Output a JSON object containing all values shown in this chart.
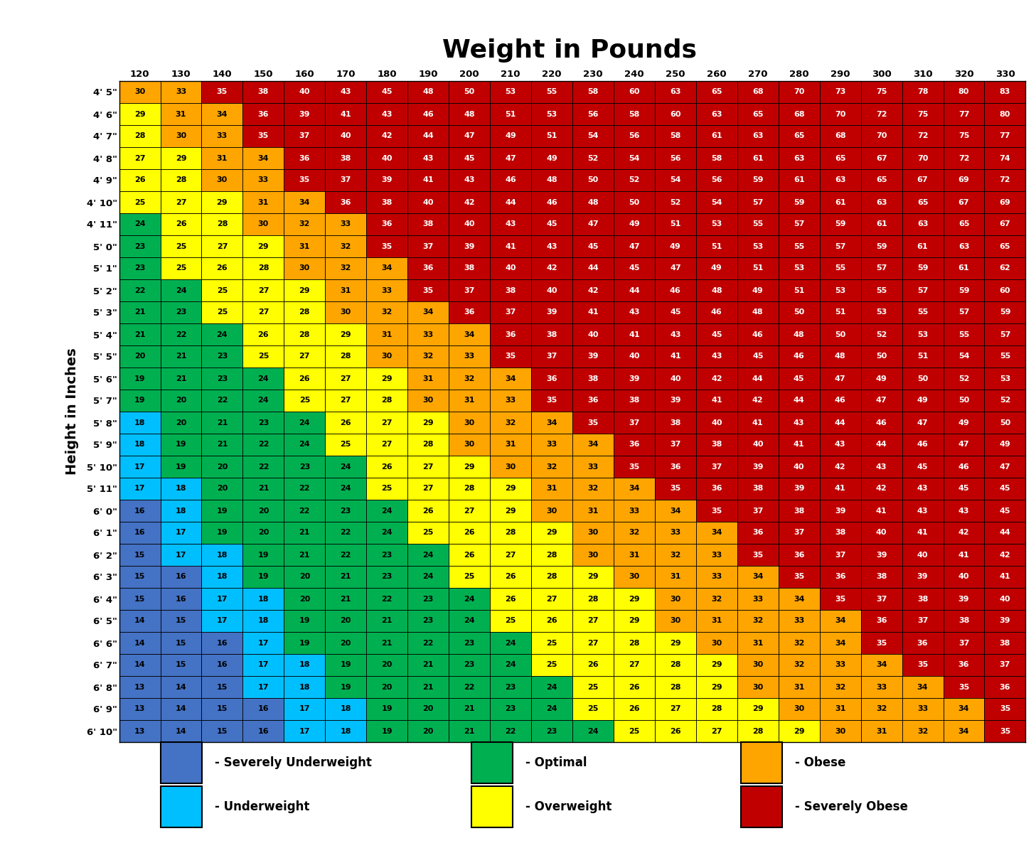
{
  "title": "Weight in Pounds",
  "ylabel": "Height in Inches",
  "weights": [
    120,
    130,
    140,
    150,
    160,
    170,
    180,
    190,
    200,
    210,
    220,
    230,
    240,
    250,
    260,
    270,
    280,
    290,
    300,
    310,
    320,
    330
  ],
  "heights": [
    "4' 5\"",
    "4' 6\"",
    "4' 7\"",
    "4' 8\"",
    "4' 9\"",
    "4' 10\"",
    "4' 11\"",
    "5' 0\"",
    "5' 1\"",
    "5' 2\"",
    "5' 3\"",
    "5' 4\"",
    "5' 5\"",
    "5' 6\"",
    "5' 7\"",
    "5' 8\"",
    "5' 9\"",
    "5' 10\"",
    "5' 11\"",
    "6' 0\"",
    "6' 1\"",
    "6' 2\"",
    "6' 3\"",
    "6' 4\"",
    "6' 5\"",
    "6' 6\"",
    "6' 7\"",
    "6' 8\"",
    "6' 9\"",
    "6' 10\""
  ],
  "bmi_data": [
    [
      30,
      33,
      35,
      38,
      40,
      43,
      45,
      48,
      50,
      53,
      55,
      58,
      60,
      63,
      65,
      68,
      70,
      73,
      75,
      78,
      80,
      83
    ],
    [
      29,
      31,
      34,
      36,
      39,
      41,
      43,
      46,
      48,
      51,
      53,
      56,
      58,
      60,
      63,
      65,
      68,
      70,
      72,
      75,
      77,
      80
    ],
    [
      28,
      30,
      33,
      35,
      37,
      40,
      42,
      44,
      47,
      49,
      51,
      54,
      56,
      58,
      61,
      63,
      65,
      68,
      70,
      72,
      75,
      77
    ],
    [
      27,
      29,
      31,
      34,
      36,
      38,
      40,
      43,
      45,
      47,
      49,
      52,
      54,
      56,
      58,
      61,
      63,
      65,
      67,
      70,
      72,
      74
    ],
    [
      26,
      28,
      30,
      33,
      35,
      37,
      39,
      41,
      43,
      46,
      48,
      50,
      52,
      54,
      56,
      59,
      61,
      63,
      65,
      67,
      69,
      72
    ],
    [
      25,
      27,
      29,
      31,
      34,
      36,
      38,
      40,
      42,
      44,
      46,
      48,
      50,
      52,
      54,
      57,
      59,
      61,
      63,
      65,
      67,
      69
    ],
    [
      24,
      26,
      28,
      30,
      32,
      33,
      36,
      38,
      40,
      43,
      45,
      47,
      49,
      51,
      53,
      55,
      57,
      59,
      61,
      63,
      65,
      67
    ],
    [
      23,
      25,
      27,
      29,
      31,
      32,
      35,
      37,
      39,
      41,
      43,
      45,
      47,
      49,
      51,
      53,
      55,
      57,
      59,
      61,
      63,
      65
    ],
    [
      23,
      25,
      26,
      28,
      30,
      32,
      34,
      36,
      38,
      40,
      42,
      44,
      45,
      47,
      49,
      51,
      53,
      55,
      57,
      59,
      61,
      62
    ],
    [
      22,
      24,
      25,
      27,
      29,
      31,
      33,
      35,
      37,
      38,
      40,
      42,
      44,
      46,
      48,
      49,
      51,
      53,
      55,
      57,
      59,
      60
    ],
    [
      21,
      23,
      25,
      27,
      28,
      30,
      32,
      34,
      36,
      37,
      39,
      41,
      43,
      45,
      46,
      48,
      50,
      51,
      53,
      55,
      57,
      59
    ],
    [
      21,
      22,
      24,
      26,
      28,
      29,
      31,
      33,
      34,
      36,
      38,
      40,
      41,
      43,
      45,
      46,
      48,
      50,
      52,
      53,
      55,
      57
    ],
    [
      20,
      21,
      23,
      25,
      27,
      28,
      30,
      32,
      33,
      35,
      37,
      39,
      40,
      41,
      43,
      45,
      46,
      48,
      50,
      51,
      54,
      55
    ],
    [
      19,
      21,
      23,
      24,
      26,
      27,
      29,
      31,
      32,
      34,
      36,
      38,
      39,
      40,
      42,
      44,
      45,
      47,
      49,
      50,
      52,
      53
    ],
    [
      19,
      20,
      22,
      24,
      25,
      27,
      28,
      30,
      31,
      33,
      35,
      36,
      38,
      39,
      41,
      42,
      44,
      46,
      47,
      49,
      50,
      52
    ],
    [
      18,
      20,
      21,
      23,
      24,
      26,
      27,
      29,
      30,
      32,
      34,
      35,
      37,
      38,
      40,
      41,
      43,
      44,
      46,
      47,
      49,
      50
    ],
    [
      18,
      19,
      21,
      22,
      24,
      25,
      27,
      28,
      30,
      31,
      33,
      34,
      36,
      37,
      38,
      40,
      41,
      43,
      44,
      46,
      47,
      49
    ],
    [
      17,
      19,
      20,
      22,
      23,
      24,
      26,
      27,
      29,
      30,
      32,
      33,
      35,
      36,
      37,
      39,
      40,
      42,
      43,
      45,
      46,
      47
    ],
    [
      17,
      18,
      20,
      21,
      22,
      24,
      25,
      27,
      28,
      29,
      31,
      32,
      34,
      35,
      36,
      38,
      39,
      41,
      42,
      43,
      45,
      45
    ],
    [
      16,
      18,
      19,
      20,
      22,
      23,
      24,
      26,
      27,
      29,
      30,
      31,
      33,
      34,
      35,
      37,
      38,
      39,
      41,
      43,
      43,
      45
    ],
    [
      16,
      17,
      19,
      20,
      21,
      22,
      24,
      25,
      26,
      28,
      29,
      30,
      32,
      33,
      34,
      36,
      37,
      38,
      40,
      41,
      42,
      44
    ],
    [
      15,
      17,
      18,
      19,
      21,
      22,
      23,
      24,
      26,
      27,
      28,
      30,
      31,
      32,
      33,
      35,
      36,
      37,
      39,
      40,
      41,
      42
    ],
    [
      15,
      16,
      18,
      19,
      20,
      21,
      23,
      24,
      25,
      26,
      28,
      29,
      30,
      31,
      33,
      34,
      35,
      36,
      38,
      39,
      40,
      41
    ],
    [
      15,
      16,
      17,
      18,
      20,
      21,
      22,
      23,
      24,
      26,
      27,
      28,
      29,
      30,
      32,
      33,
      34,
      35,
      37,
      38,
      39,
      40
    ],
    [
      14,
      15,
      17,
      18,
      19,
      20,
      21,
      23,
      24,
      25,
      26,
      27,
      29,
      30,
      31,
      32,
      33,
      34,
      36,
      37,
      38,
      39
    ],
    [
      14,
      15,
      16,
      17,
      19,
      20,
      21,
      22,
      23,
      24,
      25,
      27,
      28,
      29,
      30,
      31,
      32,
      34,
      35,
      36,
      37,
      38
    ],
    [
      14,
      15,
      16,
      17,
      18,
      19,
      20,
      21,
      23,
      24,
      25,
      26,
      27,
      28,
      29,
      30,
      32,
      33,
      34,
      35,
      36,
      37
    ],
    [
      13,
      14,
      15,
      17,
      18,
      19,
      20,
      21,
      22,
      23,
      24,
      25,
      26,
      28,
      29,
      30,
      31,
      32,
      33,
      34,
      35,
      36
    ],
    [
      13,
      14,
      15,
      16,
      17,
      18,
      19,
      20,
      21,
      23,
      24,
      25,
      26,
      27,
      28,
      29,
      30,
      31,
      32,
      33,
      34,
      35
    ],
    [
      13,
      14,
      15,
      16,
      17,
      18,
      19,
      20,
      21,
      22,
      23,
      24,
      25,
      26,
      27,
      28,
      29,
      30,
      31,
      32,
      34,
      35
    ]
  ],
  "color_severely_underweight": "#4472C4",
  "color_underweight": "#00BFFF",
  "color_optimal": "#00B050",
  "color_overweight": "#FFFF00",
  "color_obese": "#FFA500",
  "color_severely_obese": "#C00000",
  "thresh_severely_underweight": 16,
  "thresh_underweight": 18,
  "thresh_optimal": 24,
  "thresh_overweight": 29,
  "thresh_obese": 34,
  "legend": [
    {
      "label": "- Severely Underweight",
      "color": "#4472C4"
    },
    {
      "label": "- Underweight",
      "color": "#00BFFF"
    },
    {
      "label": "- Optimal",
      "color": "#00B050"
    },
    {
      "label": "- Overweight",
      "color": "#FFFF00"
    },
    {
      "label": "- Obese",
      "color": "#FFA500"
    },
    {
      "label": "- Severely Obese",
      "color": "#C00000"
    }
  ],
  "bg_color": "#f0f0f0",
  "title_fontsize": 26,
  "tick_fontsize": 9.5,
  "cell_fontsize": 8.0,
  "ylabel_fontsize": 14
}
